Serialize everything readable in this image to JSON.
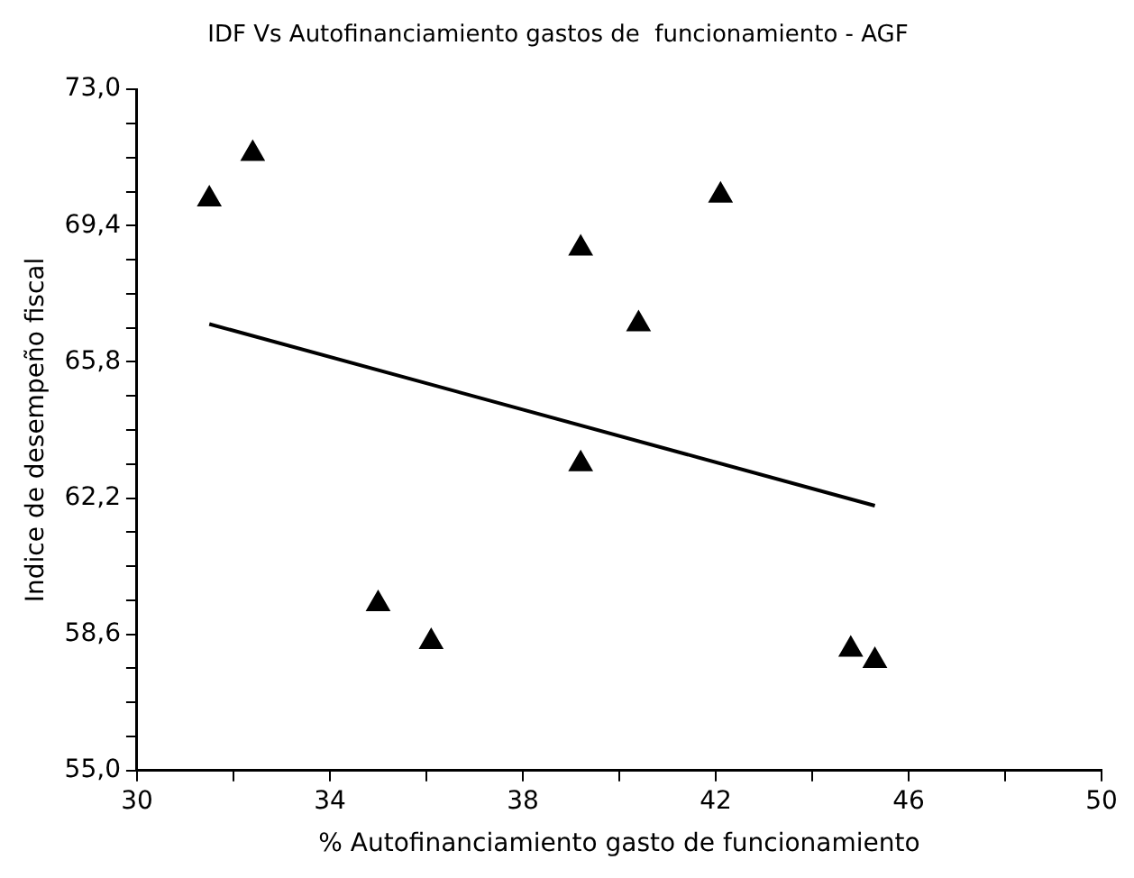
{
  "chart_data": {
    "type": "scatter",
    "title": "IDF Vs Autofinanciamiento gastos de  funcionamiento - AGF",
    "xlabel": "% Autofinanciamiento gasto de funcionamiento",
    "ylabel": "Indice de desempeño fiscal",
    "series": [
      {
        "type": "scatter",
        "color": "#000000",
        "marker": "triangle",
        "x": [
          31.5,
          32.4,
          39.2,
          42.1,
          40.4,
          39.2,
          35.0,
          36.1,
          44.8,
          45.3
        ],
        "values": [
          70.1,
          71.3,
          68.8,
          70.2,
          66.8,
          63.1,
          59.4,
          58.4,
          58.2,
          57.9
        ]
      },
      {
        "type": "line",
        "color": "#000000",
        "marker": "none",
        "line_style": "solid",
        "x": [
          31.5,
          45.3
        ],
        "values": [
          66.8,
          62.0
        ]
      }
    ],
    "xlim": [
      30,
      50
    ],
    "xticks": [
      30,
      {
        "value": 32,
        "label": null
      },
      34,
      {
        "value": 36,
        "label": null
      },
      38,
      {
        "value": 40,
        "label": null
      },
      42,
      {
        "value": 44,
        "label": null
      },
      46,
      {
        "value": 48,
        "label": null
      },
      50
    ],
    "ylim": [
      55,
      73
    ],
    "yticks": [
      {
        "value": 55,
        "label": "55,0"
      },
      {
        "value": 55.9,
        "label": null
      },
      {
        "value": 56.8,
        "label": null
      },
      {
        "value": 57.7,
        "label": null
      },
      {
        "value": 58.6,
        "label": "58,6"
      },
      {
        "value": 59.5,
        "label": null
      },
      {
        "value": 60.4,
        "label": null
      },
      {
        "value": 61.3,
        "label": null
      },
      {
        "value": 62.2,
        "label": "62,2"
      },
      {
        "value": 63.1,
        "label": null
      },
      {
        "value": 64,
        "label": null
      },
      {
        "value": 64.9,
        "label": null
      },
      {
        "value": 65.8,
        "label": "65,8"
      },
      {
        "value": 66.7,
        "label": null
      },
      {
        "value": 67.6,
        "label": null
      },
      {
        "value": 68.5,
        "label": null
      },
      {
        "value": 69.4,
        "label": "69,4"
      },
      {
        "value": 70.3,
        "label": null
      },
      {
        "value": 71.2,
        "label": null
      },
      {
        "value": 72.1,
        "label": null
      },
      {
        "value": 73,
        "label": "73,0"
      }
    ],
    "grid": false,
    "legend": false
  }
}
